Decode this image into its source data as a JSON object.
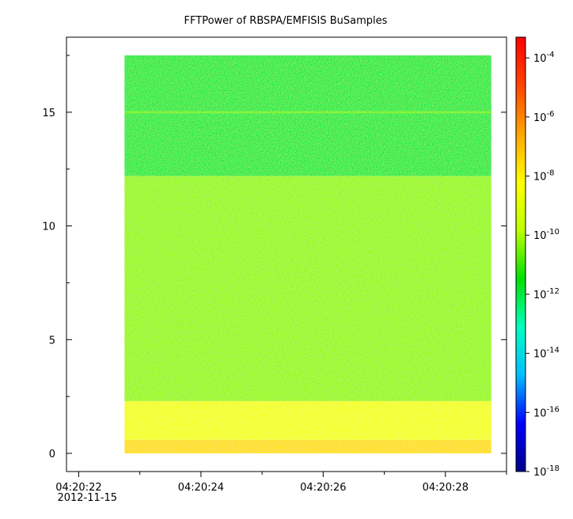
{
  "chart_data": {
    "type": "heatmap",
    "title": "FFTPower of RBSPA/EMFISIS  BuSamples",
    "xlabel": "",
    "ylabel": "",
    "grid": false,
    "x_axis": {
      "type": "time",
      "range": [
        "04:20:21.8",
        "04:20:29.0"
      ],
      "ticks": [
        {
          "value": "04:20:22",
          "label": "04:20:22",
          "sublabel": "2012-11-15"
        },
        {
          "value": "04:20:24",
          "label": "04:20:24",
          "sublabel": ""
        },
        {
          "value": "04:20:26",
          "label": "04:20:26",
          "sublabel": ""
        },
        {
          "value": "04:20:28",
          "label": "04:20:28",
          "sublabel": ""
        }
      ],
      "minor_ticks": [
        "04:20:23",
        "04:20:25",
        "04:20:27",
        "04:20:29"
      ]
    },
    "y_axis": {
      "range": [
        -0.8,
        18.3
      ],
      "ticks": [
        0,
        5,
        10,
        15
      ],
      "tick_labels": [
        "0",
        "5",
        "10",
        "15"
      ],
      "minor_ticks": [
        2.5,
        7.5,
        12.5,
        17.5
      ]
    },
    "data_extent": {
      "x": [
        "04:20:22.75",
        "04:20:28.75"
      ],
      "y": [
        0,
        17.5
      ]
    },
    "z_bands": [
      {
        "y_range": [
          0,
          0.6
        ],
        "log10_power": -7.6,
        "description": "strongest low band"
      },
      {
        "y_range": [
          0.6,
          2.3
        ],
        "log10_power": -8.5
      },
      {
        "y_range": [
          2.3,
          12.2
        ],
        "log10_power": -10.2
      },
      {
        "y_range": [
          12.2,
          17.5
        ],
        "log10_power": -12.0
      },
      {
        "y_range": [
          14.95,
          15.05
        ],
        "log10_power": -10.5,
        "description": "narrow line near 15"
      }
    ],
    "colorbar": {
      "scale": "log",
      "range": [
        -18,
        -3.3
      ],
      "ticks": [
        {
          "exp": -4,
          "base": "10",
          "sup": "-4"
        },
        {
          "exp": -6,
          "base": "10",
          "sup": "-6"
        },
        {
          "exp": -8,
          "base": "10",
          "sup": "-8"
        },
        {
          "exp": -10,
          "base": "10",
          "sup": "-10"
        },
        {
          "exp": -12,
          "base": "10",
          "sup": "-12"
        },
        {
          "exp": -14,
          "base": "10",
          "sup": "-14"
        },
        {
          "exp": -16,
          "base": "10",
          "sup": "-16"
        },
        {
          "exp": -18,
          "base": "10",
          "sup": "-18"
        }
      ],
      "colormap": [
        "#00008b",
        "#0000ff",
        "#00bfff",
        "#00ffbf",
        "#00e000",
        "#bfff00",
        "#ffff00",
        "#ffa500",
        "#ff4500",
        "#ff0000"
      ]
    }
  }
}
